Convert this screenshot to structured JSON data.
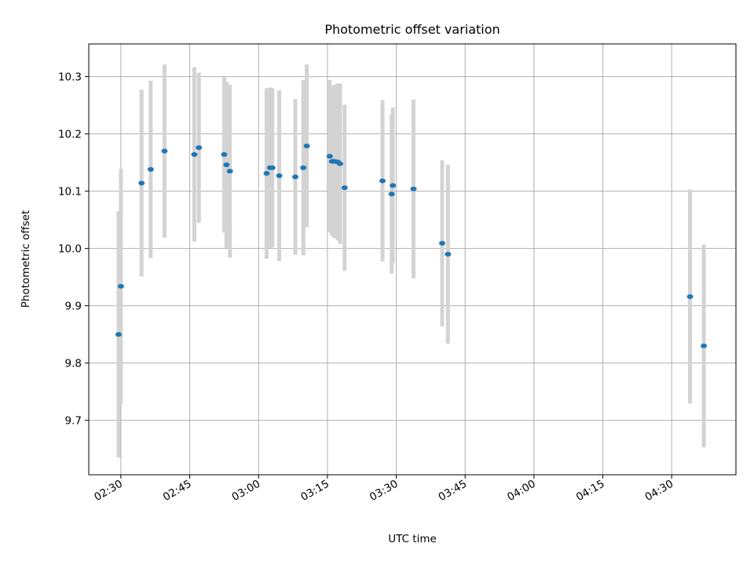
{
  "chart_data": {
    "type": "scatter",
    "title": "Photometric offset variation",
    "xlabel": "UTC time",
    "ylabel": "Photometric offset",
    "x_tick_labels": [
      "02:30",
      "02:45",
      "03:00",
      "03:15",
      "03:30",
      "03:45",
      "04:00",
      "04:15",
      "04:30"
    ],
    "x_ticks": [
      "02:30",
      "02:45",
      "03:00",
      "03:15",
      "03:30",
      "03:45",
      "04:00",
      "04:15",
      "04:30"
    ],
    "y_ticks": [
      9.7,
      9.8,
      9.9,
      10.0,
      10.1,
      10.2,
      10.3
    ],
    "y_tick_labels": [
      "9.7",
      "9.8",
      "9.9",
      "10.0",
      "10.1",
      "10.2",
      "10.3"
    ],
    "xlim": [
      "02:23:00",
      "04:44:00"
    ],
    "ylim": [
      9.605,
      10.357
    ],
    "grid": true,
    "legend": false,
    "colors": {
      "point": "#1f77b4",
      "errorbar": "#d3d3d3",
      "grid": "#b0b0b0"
    },
    "series": [
      {
        "points": [
          {
            "x": "02:29:30",
            "y": 9.85,
            "err": 0.215
          },
          {
            "x": "02:30:00",
            "y": 9.934,
            "err": 0.205
          },
          {
            "x": "02:34:30",
            "y": 10.114,
            "err": 0.163
          },
          {
            "x": "02:36:30",
            "y": 10.138,
            "err": 0.155
          },
          {
            "x": "02:39:30",
            "y": 10.17,
            "err": 0.151
          },
          {
            "x": "02:46:00",
            "y": 10.164,
            "err": 0.152
          },
          {
            "x": "02:47:00",
            "y": 10.176,
            "err": 0.131
          },
          {
            "x": "02:52:30",
            "y": 10.164,
            "err": 0.136
          },
          {
            "x": "02:53:00",
            "y": 10.146,
            "err": 0.145
          },
          {
            "x": "02:53:45",
            "y": 10.135,
            "err": 0.151
          },
          {
            "x": "03:01:45",
            "y": 10.131,
            "err": 0.149
          },
          {
            "x": "03:02:30",
            "y": 10.141,
            "err": 0.14
          },
          {
            "x": "03:03:00",
            "y": 10.141,
            "err": 0.139
          },
          {
            "x": "03:04:30",
            "y": 10.127,
            "err": 0.149
          },
          {
            "x": "03:08:00",
            "y": 10.125,
            "err": 0.136
          },
          {
            "x": "03:09:45",
            "y": 10.141,
            "err": 0.153
          },
          {
            "x": "03:10:30",
            "y": 10.179,
            "err": 0.142
          },
          {
            "x": "03:15:30",
            "y": 10.161,
            "err": 0.133
          },
          {
            "x": "03:16:00",
            "y": 10.152,
            "err": 0.13
          },
          {
            "x": "03:16:30",
            "y": 10.152,
            "err": 0.134
          },
          {
            "x": "03:17:15",
            "y": 10.151,
            "err": 0.137
          },
          {
            "x": "03:17:45",
            "y": 10.148,
            "err": 0.14
          },
          {
            "x": "03:18:45",
            "y": 10.106,
            "err": 0.145
          },
          {
            "x": "03:27:00",
            "y": 10.118,
            "err": 0.141
          },
          {
            "x": "03:29:00",
            "y": 10.095,
            "err": 0.139
          },
          {
            "x": "03:29:15",
            "y": 10.11,
            "err": 0.136
          },
          {
            "x": "03:33:45",
            "y": 10.104,
            "err": 0.156
          },
          {
            "x": "03:40:00",
            "y": 10.009,
            "err": 0.145
          },
          {
            "x": "03:41:15",
            "y": 9.99,
            "err": 0.156
          },
          {
            "x": "04:34:00",
            "y": 9.916,
            "err": 0.187
          },
          {
            "x": "04:37:00",
            "y": 9.83,
            "err": 0.177
          }
        ]
      }
    ]
  }
}
